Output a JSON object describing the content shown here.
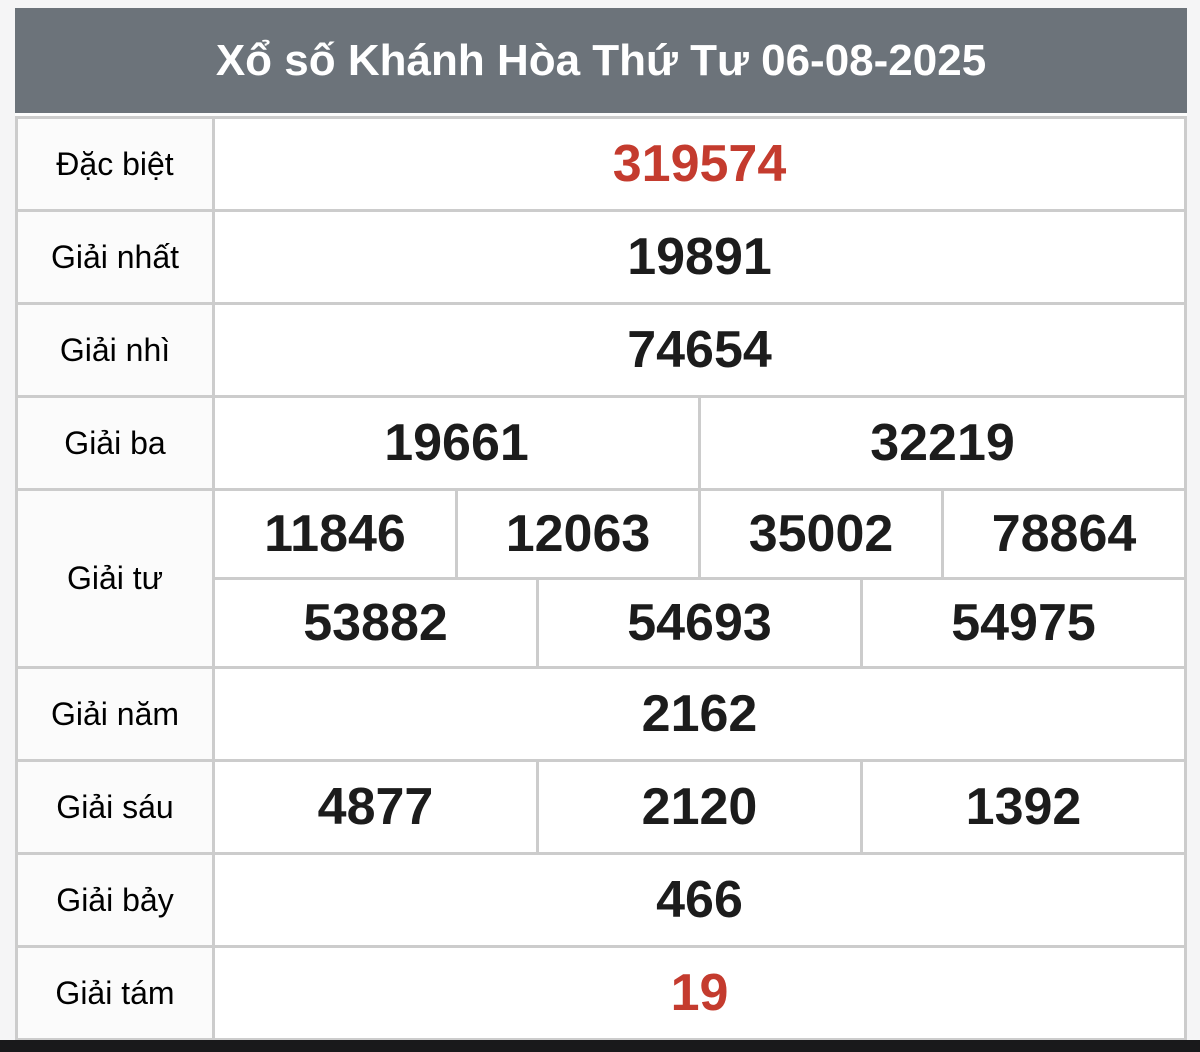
{
  "header": {
    "title": "Xổ số Khánh Hòa Thứ Tư 06-08-2025"
  },
  "colors": {
    "header_bg": "#6c737a",
    "header_text": "#ffffff",
    "highlight": "#c43b2e",
    "number": "#1c1c1c",
    "border": "#cccccc",
    "label_bg": "#fbfbfb",
    "cell_bg": "#ffffff",
    "page_bg": "#f5f5f6",
    "bottom_bar": "#19191b"
  },
  "table": {
    "rows": [
      {
        "label": "Đặc biệt",
        "highlight": true,
        "lines": [
          [
            "319574"
          ]
        ]
      },
      {
        "label": "Giải nhất",
        "highlight": false,
        "lines": [
          [
            "19891"
          ]
        ]
      },
      {
        "label": "Giải nhì",
        "highlight": false,
        "lines": [
          [
            "74654"
          ]
        ]
      },
      {
        "label": "Giải ba",
        "highlight": false,
        "lines": [
          [
            "19661",
            "32219"
          ]
        ]
      },
      {
        "label": "Giải tư",
        "highlight": false,
        "lines": [
          [
            "11846",
            "12063",
            "35002",
            "78864"
          ],
          [
            "53882",
            "54693",
            "54975"
          ]
        ]
      },
      {
        "label": "Giải năm",
        "highlight": false,
        "lines": [
          [
            "2162"
          ]
        ]
      },
      {
        "label": "Giải sáu",
        "highlight": false,
        "lines": [
          [
            "4877",
            "2120",
            "1392"
          ]
        ]
      },
      {
        "label": "Giải bảy",
        "highlight": false,
        "lines": [
          [
            "466"
          ]
        ]
      },
      {
        "label": "Giải tám",
        "highlight": true,
        "lines": [
          [
            "19"
          ]
        ]
      }
    ]
  }
}
